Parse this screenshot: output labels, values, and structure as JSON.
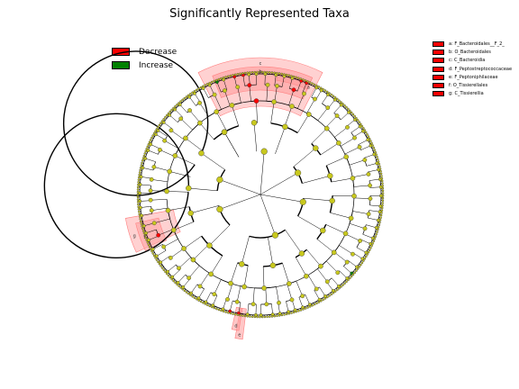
{
  "title": "Significantly Represented Taxa",
  "legend": [
    {
      "label": "Decrease",
      "color": "#ff0000"
    },
    {
      "label": "Increase",
      "color": "#008000"
    }
  ],
  "taxa_legend": [
    {
      "key": "a",
      "label": "a: F_Bacteroidales__F_2_"
    },
    {
      "key": "b",
      "label": "b: O_Bacteroidales"
    },
    {
      "key": "c",
      "label": "c: C_Bacteroidia"
    },
    {
      "key": "d",
      "label": "d: F_Peptostreptococcaceae"
    },
    {
      "key": "e",
      "label": "e: F_Peptoniphilaceae"
    },
    {
      "key": "f",
      "label": "f: O_Tissierellales"
    },
    {
      "key": "g",
      "label": "g: C_Tissierellia"
    }
  ],
  "colors": {
    "decrease": "#ff0000",
    "increase": "#008000",
    "neutral_node": "#c8c81e",
    "highlight": "#ff9999"
  },
  "highlights": [
    {
      "label": "c",
      "level": 3
    },
    {
      "label": "b",
      "level": 4
    },
    {
      "label": "a",
      "level": 5
    },
    {
      "label": "g",
      "level": 3
    },
    {
      "label": "f",
      "level": 4
    },
    {
      "label": "e",
      "level": 5
    },
    {
      "label": "d",
      "level": 5
    }
  ]
}
